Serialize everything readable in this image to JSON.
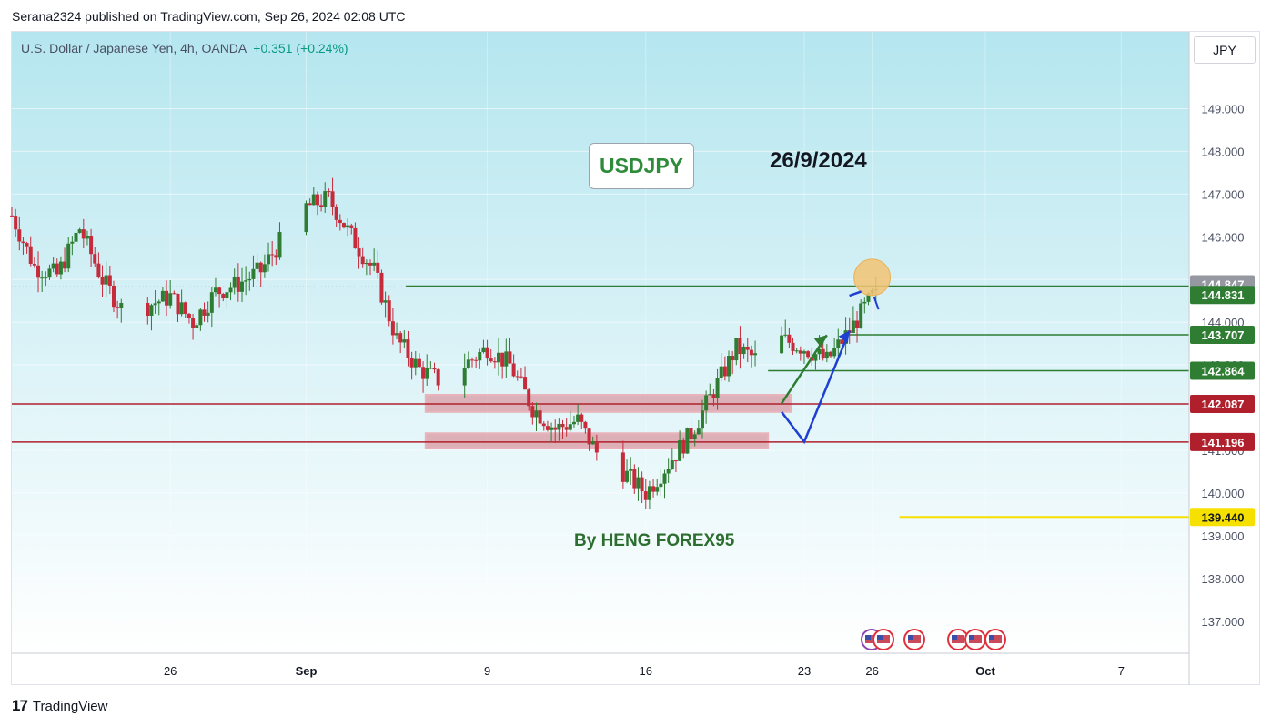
{
  "header": {
    "publish_line": "Serana2324 published on TradingView.com, Sep 26, 2024 02:08 UTC"
  },
  "symbol": {
    "description": "U.S. Dollar / Japanese Yen, 4h, OANDA",
    "change": "+0.351 (+0.24%)"
  },
  "currency_label": "JPY",
  "annotations": {
    "title": "USDJPY",
    "date": "26/9/2024",
    "author": "By HENG FOREX95"
  },
  "footer": {
    "brand": "TradingView",
    "logo_glyph": "17"
  },
  "colors": {
    "background_top": "#b5e6ef",
    "background_bottom": "#ffffff",
    "up_candle": "#2e7d32",
    "down_candle": "#c62b3c",
    "support_line": "#b0202c",
    "zone_fill": "#d98a95",
    "green_level": "#2e7d32",
    "yellow_level": "#f5e000",
    "blue_projection": "#1f3fd1",
    "circle_fill": "#f3c373"
  },
  "chart_data": {
    "type": "candlestick",
    "instrument": "USDJPY",
    "timeframe": "4h",
    "x_ticks": [
      "26",
      "Sep",
      "9",
      "16",
      "23",
      "26",
      "Oct",
      "7"
    ],
    "x_tick_dates": [
      "2024-08-26",
      "2024-09-01",
      "2024-09-09",
      "2024-09-16",
      "2024-09-23",
      "2024-09-26",
      "2024-10-01",
      "2024-10-07"
    ],
    "x_range": [
      "2024-08-19",
      "2024-10-10"
    ],
    "y_ticks": [
      "149.000",
      "148.000",
      "147.000",
      "146.000",
      "145.000",
      "144.000",
      "143.000",
      "142.000",
      "141.000",
      "140.000",
      "139.000",
      "138.000",
      "137.000"
    ],
    "y_range": [
      136.25,
      150.8
    ],
    "grid": true,
    "close_path": [
      [
        "2024-08-19",
        146.5
      ],
      [
        "2024-08-20",
        145.3
      ],
      [
        "2024-08-21",
        145.1
      ],
      [
        "2024-08-22",
        146.2
      ],
      [
        "2024-08-23",
        145.0
      ],
      [
        "2024-08-24",
        144.2
      ],
      [
        "2024-08-26",
        144.6
      ],
      [
        "2024-08-27",
        144.0
      ],
      [
        "2024-08-28",
        144.7
      ],
      [
        "2024-08-29",
        144.9
      ],
      [
        "2024-08-30",
        145.2
      ],
      [
        "2024-08-31",
        146.0
      ],
      [
        "2024-09-01",
        146.7
      ],
      [
        "2024-09-02",
        146.9
      ],
      [
        "2024-09-03",
        146.0
      ],
      [
        "2024-09-04",
        145.2
      ],
      [
        "2024-09-05",
        143.6
      ],
      [
        "2024-09-06",
        142.9
      ],
      [
        "2024-09-07",
        142.6
      ],
      [
        "2024-09-09",
        143.4
      ],
      [
        "2024-09-10",
        143.0
      ],
      [
        "2024-09-11",
        142.0
      ],
      [
        "2024-09-12",
        141.5
      ],
      [
        "2024-09-13",
        141.7
      ],
      [
        "2024-09-14",
        140.8
      ],
      [
        "2024-09-15",
        140.5
      ],
      [
        "2024-09-16",
        140.0
      ],
      [
        "2024-09-17",
        140.7
      ],
      [
        "2024-09-18",
        141.4
      ],
      [
        "2024-09-19",
        142.4
      ],
      [
        "2024-09-20",
        143.4
      ],
      [
        "2024-09-21",
        143.1
      ],
      [
        "2024-09-22",
        143.6
      ],
      [
        "2024-09-23",
        143.4
      ],
      [
        "2024-09-24",
        143.1
      ],
      [
        "2024-09-25",
        143.8
      ],
      [
        "2024-09-26",
        144.6
      ]
    ],
    "price_labels": [
      {
        "value": 144.847,
        "label": "144.847",
        "color": "#9598a1"
      },
      {
        "value": 144.831,
        "label": "144.831",
        "color": "#2e7d32"
      },
      {
        "value": 143.707,
        "label": "143.707",
        "color": "#2e7d32"
      },
      {
        "value": 142.864,
        "label": "142.864",
        "color": "#2e7d32"
      },
      {
        "value": 142.087,
        "label": "142.087",
        "color": "#b0202c"
      },
      {
        "value": 141.196,
        "label": "141.196",
        "color": "#b0202c"
      },
      {
        "value": 139.44,
        "label": "139.440",
        "color": "#f5e000"
      }
    ],
    "zones": [
      {
        "from": "2024-09-07",
        "to": "2024-09-22",
        "low": 141.9,
        "high": 142.3
      },
      {
        "from": "2024-09-07",
        "to": "2024-09-21",
        "low": 141.05,
        "high": 141.4
      }
    ],
    "projection_green": [
      [
        "2024-09-22",
        142.1
      ],
      [
        "2024-09-24",
        143.7
      ]
    ],
    "projection_blue": [
      [
        "2024-09-22",
        141.9
      ],
      [
        "2024-09-23",
        141.2
      ],
      [
        "2024-09-25",
        143.8
      ]
    ],
    "target_circle": {
      "date": "2024-09-26",
      "value": 145.05
    }
  }
}
